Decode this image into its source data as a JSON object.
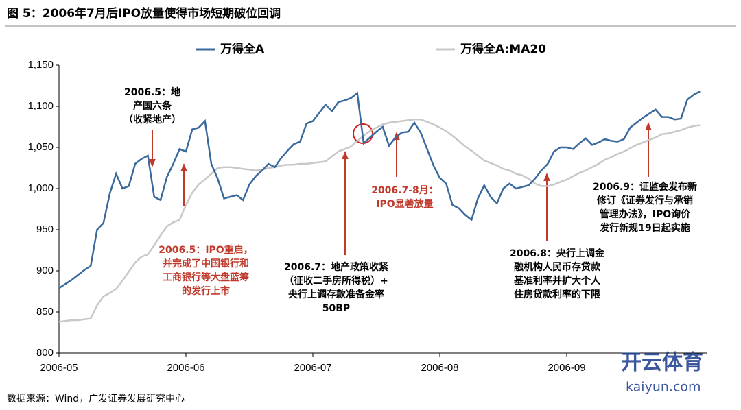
{
  "chart_data": {
    "type": "line",
    "title": "图 5：2006年7月后IPO放量使得市场短期破位回调",
    "source": "数据来源：Wind，广发证券发展研究中心",
    "watermark": [
      "开云体育",
      "kaiyun.com"
    ],
    "categories": [
      "2006-05",
      null,
      null,
      null,
      null,
      null,
      null,
      null,
      null,
      null,
      null,
      null,
      null,
      null,
      null,
      null,
      null,
      null,
      null,
      null,
      "2006-06",
      null,
      null,
      null,
      null,
      null,
      null,
      null,
      null,
      null,
      null,
      null,
      null,
      null,
      null,
      null,
      null,
      null,
      null,
      null,
      "2006-07",
      null,
      null,
      null,
      null,
      null,
      null,
      null,
      null,
      null,
      null,
      null,
      null,
      null,
      null,
      null,
      null,
      null,
      null,
      null,
      "2006-08",
      null,
      null,
      null,
      null,
      null,
      null,
      null,
      null,
      null,
      null,
      null,
      null,
      null,
      null,
      null,
      null,
      null,
      null,
      null,
      "2006-09",
      null,
      null,
      null,
      null,
      null,
      null,
      null,
      null,
      null,
      null,
      null,
      null,
      null,
      null,
      null,
      null,
      null,
      null,
      null,
      null,
      null
    ],
    "series": [
      {
        "name": "万得全A",
        "color": "#3a6a9c",
        "values": [
          879,
          884,
          889,
          895,
          901,
          906,
          950,
          958,
          994,
          1018,
          1000,
          1003,
          1030,
          1036,
          1040,
          990,
          986,
          1014,
          1030,
          1048,
          1045,
          1072,
          1074,
          1082,
          1030,
          1012,
          988,
          990,
          992,
          986,
          1005,
          1015,
          1022,
          1030,
          1026,
          1037,
          1046,
          1054,
          1057,
          1079,
          1082,
          1092,
          1102,
          1094,
          1105,
          1107,
          1110,
          1116,
          1055,
          1062,
          1069,
          1075,
          1052,
          1062,
          1068,
          1069,
          1080,
          1068,
          1048,
          1028,
          1013,
          1006,
          980,
          976,
          968,
          962,
          988,
          1004,
          990,
          982,
          1000,
          1006,
          1000,
          1002,
          1004,
          1012,
          1022,
          1030,
          1045,
          1050,
          1050,
          1048,
          1055,
          1061,
          1053,
          1056,
          1060,
          1058,
          1057,
          1060,
          1074,
          1080,
          1086,
          1091,
          1096,
          1087,
          1087,
          1084,
          1085,
          1108,
          1114,
          1118
        ]
      },
      {
        "name": "万得全A:MA20",
        "color": "#c8c8c8",
        "values": [
          838,
          839,
          840,
          840,
          841,
          842,
          858,
          869,
          873,
          878,
          888,
          899,
          910,
          917,
          920,
          931,
          943,
          954,
          959,
          962,
          980,
          995,
          1005,
          1011,
          1018,
          1025,
          1026,
          1026,
          1025,
          1024,
          1023,
          1022,
          1023,
          1025,
          1026,
          1028,
          1029,
          1029,
          1030,
          1030,
          1031,
          1032,
          1033,
          1039,
          1045,
          1048,
          1051,
          1058,
          1064,
          1070,
          1074,
          1078,
          1080,
          1081,
          1082,
          1083,
          1084,
          1084,
          1081,
          1078,
          1074,
          1070,
          1064,
          1058,
          1051,
          1046,
          1040,
          1034,
          1031,
          1028,
          1024,
          1022,
          1018,
          1016,
          1012,
          1006,
          1003,
          1003,
          1005,
          1008,
          1011,
          1015,
          1019,
          1022,
          1026,
          1030,
          1035,
          1038,
          1042,
          1045,
          1049,
          1053,
          1056,
          1059,
          1062,
          1066,
          1067,
          1069,
          1071,
          1074,
          1076,
          1077
        ]
      }
    ],
    "ylim": [
      800,
      1150
    ],
    "yticks": [
      800,
      850,
      900,
      950,
      {
        "value": 1000,
        "label": "1,000"
      },
      {
        "value": 1050,
        "label": "1,050"
      },
      {
        "value": 1100,
        "label": "1,100"
      },
      {
        "value": 1150,
        "label": "1,150"
      }
    ],
    "grid": false,
    "annotations": [
      {
        "lines": [
          "2006.5：地",
          "产国六条",
          "（收紧地产）"
        ],
        "color": "#000000"
      },
      {
        "lines": [
          "2006.5：IPO重启，",
          "并完成了中国银行和",
          "工商银行等大盘蓝筹",
          "的发行上市"
        ],
        "color": "#c0392b"
      },
      {
        "lines": [
          "2006.7：地产政策收紧",
          "（征收二手房所得税）+",
          "央行上调存款准备金率",
          "50BP"
        ],
        "color": "#000000"
      },
      {
        "lines": [
          "2006.7-8月：",
          "IPO显著放量"
        ],
        "color": "#c0392b"
      },
      {
        "lines": [
          "2006.8：央行上调金",
          "融机构人民币存贷款",
          "基准利率并扩大个人",
          "住房贷款利率的下限"
        ],
        "color": "#000000"
      },
      {
        "lines": [
          "2006.9：证监会发布新",
          "修订《证券发行与承销",
          "管理办法》，IPO询价",
          "发行新规19日起实施"
        ],
        "color": "#000000"
      }
    ]
  }
}
